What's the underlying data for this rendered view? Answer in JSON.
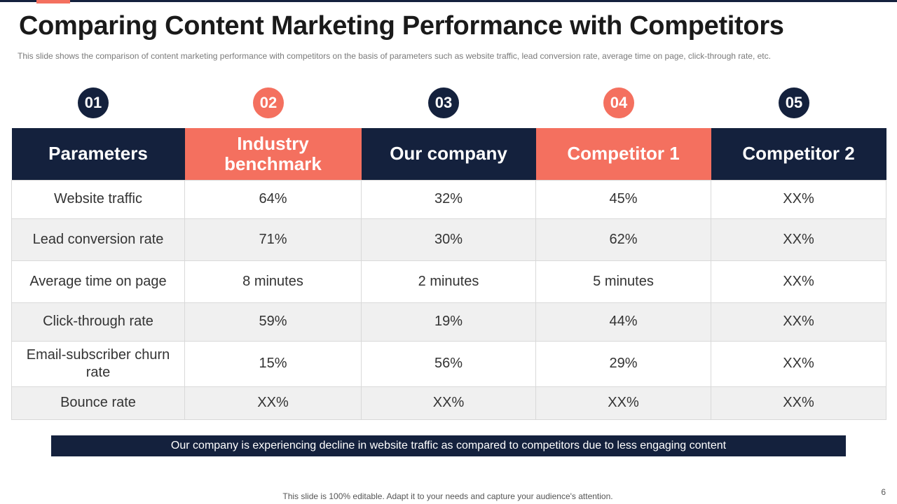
{
  "slide": {
    "title": "Comparing Content Marketing Performance with Competitors",
    "subtitle": "This slide shows the comparison of content marketing performance  with competitors on the basis of parameters such as website traffic, lead conversion  rate, average  time on page, click-through rate, etc.",
    "step_numbers": [
      "01",
      "02",
      "03",
      "04",
      "05"
    ],
    "table": {
      "headers": [
        "Parameters",
        "Industry benchmark",
        "Our company",
        "Competitor 1",
        "Competitor 2"
      ],
      "rows": [
        [
          "Website traffic",
          "64%",
          "32%",
          "45%",
          "XX%"
        ],
        [
          "Lead conversion rate",
          "71%",
          "30%",
          "62%",
          "XX%"
        ],
        [
          "Average time on page",
          "8 minutes",
          "2 minutes",
          "5 minutes",
          "XX%"
        ],
        [
          "Click-through  rate",
          "59%",
          "19%",
          "44%",
          "XX%"
        ],
        [
          "Email-subscriber  churn rate",
          "15%",
          "56%",
          "29%",
          "XX%"
        ],
        [
          "Bounce rate",
          "XX%",
          "XX%",
          "XX%",
          "XX%"
        ]
      ]
    },
    "banner_text": "Our company is experiencing decline in website traffic as compared to competitors due to less engaging content",
    "footer_note": "This slide is 100% editable. Adapt it to your needs and capture your audience's attention.",
    "page_number": "6"
  },
  "colors": {
    "navy": "#14213d",
    "coral": "#f4705f",
    "row_alt": "#f0f0f0"
  }
}
